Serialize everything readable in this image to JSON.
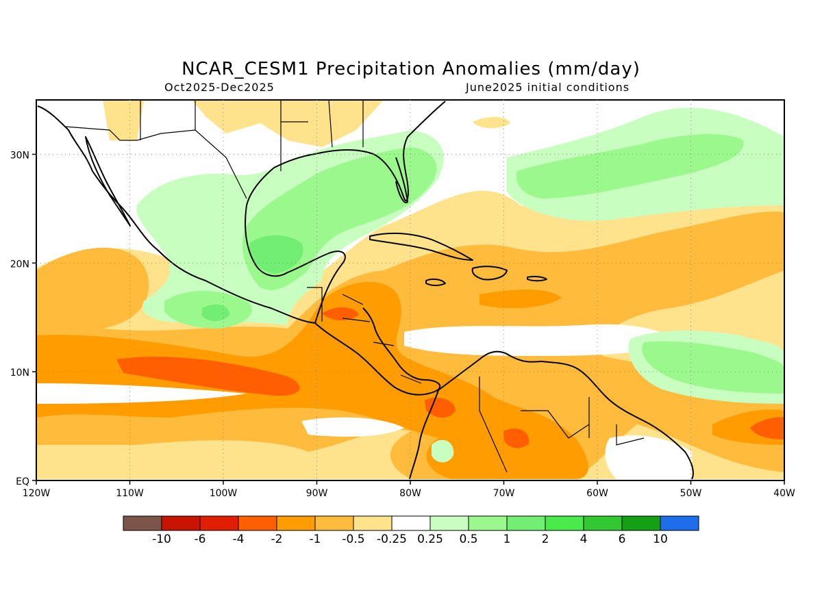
{
  "title": "NCAR_CESM1 Precipitation Anomalies (mm/day)",
  "subtitle_left": "Oct2025-Dec2025",
  "subtitle_right": "June2025 initial conditions",
  "axes": {
    "x_ticks": [
      "120W",
      "110W",
      "100W",
      "90W",
      "80W",
      "70W",
      "60W",
      "50W",
      "40W"
    ],
    "y_ticks": [
      "EQ",
      "10N",
      "20N",
      "30N"
    ],
    "lon_range": [
      -120,
      -40
    ],
    "lat_range": [
      0,
      35
    ],
    "grid": "dotted"
  },
  "colorbar": {
    "colors": [
      "#7a5548",
      "#c81400",
      "#e01e00",
      "#ff5f00",
      "#ff9c00",
      "#ffbb3c",
      "#ffe38c",
      "#ffffff",
      "#c8ffc0",
      "#9bf88c",
      "#72ef72",
      "#4aea4a",
      "#32c832",
      "#14a014",
      "#1e6eeb"
    ],
    "labels": [
      "-10",
      "-6",
      "-4",
      "-2",
      "-1",
      "-0.5",
      "-0.25",
      "0.25",
      "0.5",
      "1",
      "2",
      "4",
      "6",
      "10"
    ]
  },
  "field_colors": {
    "dry_light": "#ffe38c",
    "dry_mid": "#ffbb3c",
    "dry_strong": "#ff9c00",
    "dry_max": "#ff5f00",
    "wet_light": "#c8ffc0",
    "wet_mid": "#9bf88c",
    "wet_strong": "#72ef72"
  }
}
